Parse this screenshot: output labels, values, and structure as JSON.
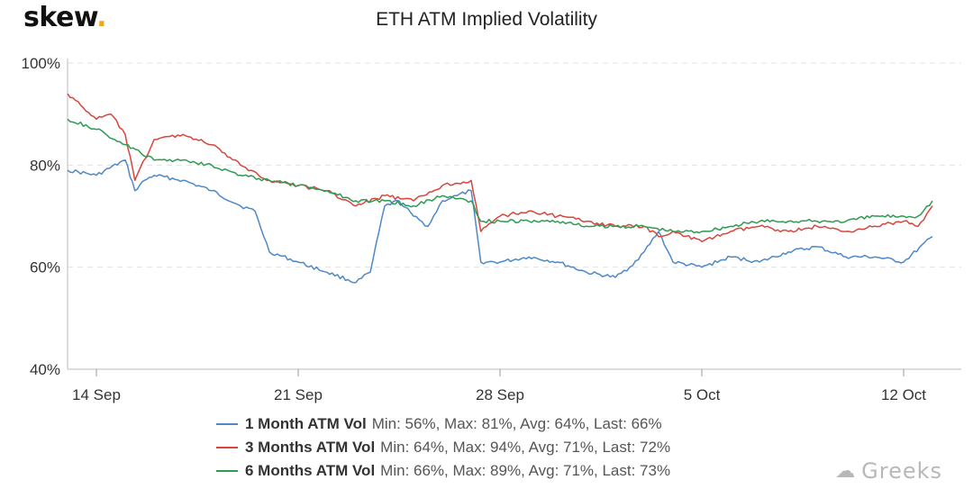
{
  "header": {
    "brand": "skew",
    "brand_dot": "."
  },
  "watermark": {
    "icon": "wechat-bubbles-icon",
    "text": "Greeks"
  },
  "chart_data": {
    "type": "line",
    "title": "ETH ATM Implied Volatility",
    "xlabel": "",
    "ylabel": "",
    "ylim": [
      40,
      100
    ],
    "y_ticks": [
      40,
      60,
      80,
      100
    ],
    "y_tick_labels": [
      "40%",
      "60%",
      "80%",
      "100%"
    ],
    "x_range": [
      "2020-09-13",
      "2020-10-14"
    ],
    "x_ticks": [
      "2020-09-14",
      "2020-09-21",
      "2020-09-28",
      "2020-10-05",
      "2020-10-12"
    ],
    "x_tick_labels": [
      "14 Sep",
      "21 Sep",
      "28 Sep",
      "5 Oct",
      "12 Oct"
    ],
    "grid": "horizontal dashed",
    "legend_position": "bottom",
    "series": [
      {
        "name": "1 Month ATM Vol",
        "stats": "Min: 56%, Max: 81%, Avg: 64%, Last: 66%",
        "color": "#4f88c8",
        "points": [
          [
            "2020-09-13",
            79
          ],
          [
            "2020-09-14",
            78
          ],
          [
            "2020-09-15",
            81
          ],
          [
            "2020-09-15T08:00",
            75
          ],
          [
            "2020-09-15T16:00",
            77
          ],
          [
            "2020-09-16",
            78
          ],
          [
            "2020-09-17",
            77
          ],
          [
            "2020-09-18",
            75
          ],
          [
            "2020-09-19",
            72
          ],
          [
            "2020-09-19T12:00",
            71
          ],
          [
            "2020-09-20",
            63
          ],
          [
            "2020-09-21",
            61
          ],
          [
            "2020-09-22",
            59
          ],
          [
            "2020-09-23",
            57
          ],
          [
            "2020-09-23T12:00",
            59
          ],
          [
            "2020-09-24",
            72
          ],
          [
            "2020-09-24T12:00",
            73
          ],
          [
            "2020-09-25",
            70
          ],
          [
            "2020-09-25T12:00",
            68
          ],
          [
            "2020-09-26",
            73
          ],
          [
            "2020-09-26T12:00",
            74
          ],
          [
            "2020-09-27",
            75
          ],
          [
            "2020-09-27T08:00",
            61
          ],
          [
            "2020-09-28",
            61
          ],
          [
            "2020-09-29",
            62
          ],
          [
            "2020-09-30",
            61
          ],
          [
            "2020-10-01",
            59
          ],
          [
            "2020-10-02",
            58
          ],
          [
            "2020-10-02T12:00",
            60
          ],
          [
            "2020-10-03",
            63
          ],
          [
            "2020-10-03T12:00",
            67
          ],
          [
            "2020-10-04",
            61
          ],
          [
            "2020-10-05",
            60
          ],
          [
            "2020-10-06",
            62
          ],
          [
            "2020-10-07",
            61
          ],
          [
            "2020-10-08",
            63
          ],
          [
            "2020-10-09",
            64
          ],
          [
            "2020-10-10",
            62
          ],
          [
            "2020-10-11",
            62
          ],
          [
            "2020-10-12",
            61
          ],
          [
            "2020-10-13",
            66
          ]
        ]
      },
      {
        "name": "3 Months ATM Vol",
        "stats": "Min: 64%, Max: 94%, Avg: 71%, Last: 72%",
        "color": "#d8453d",
        "points": [
          [
            "2020-09-13",
            94
          ],
          [
            "2020-09-14",
            89
          ],
          [
            "2020-09-14T12:00",
            90
          ],
          [
            "2020-09-15",
            86
          ],
          [
            "2020-09-15T08:00",
            77
          ],
          [
            "2020-09-16",
            85
          ],
          [
            "2020-09-17",
            86
          ],
          [
            "2020-09-18",
            84
          ],
          [
            "2020-09-19",
            80
          ],
          [
            "2020-09-20",
            77
          ],
          [
            "2020-09-21",
            76
          ],
          [
            "2020-09-22",
            75
          ],
          [
            "2020-09-23",
            72
          ],
          [
            "2020-09-24",
            74
          ],
          [
            "2020-09-25",
            73
          ],
          [
            "2020-09-26",
            76
          ],
          [
            "2020-09-27",
            77
          ],
          [
            "2020-09-27T08:00",
            67
          ],
          [
            "2020-09-28",
            70
          ],
          [
            "2020-09-29",
            71
          ],
          [
            "2020-09-30",
            70
          ],
          [
            "2020-10-01",
            69
          ],
          [
            "2020-10-02",
            68
          ],
          [
            "2020-10-03",
            68
          ],
          [
            "2020-10-03T12:00",
            66
          ],
          [
            "2020-10-04",
            67
          ],
          [
            "2020-10-05",
            65
          ],
          [
            "2020-10-06",
            67
          ],
          [
            "2020-10-07",
            68
          ],
          [
            "2020-10-08",
            67
          ],
          [
            "2020-10-09",
            68
          ],
          [
            "2020-10-10",
            67
          ],
          [
            "2020-10-11",
            68
          ],
          [
            "2020-10-12",
            69
          ],
          [
            "2020-10-12T12:00",
            68
          ],
          [
            "2020-10-13",
            72
          ]
        ]
      },
      {
        "name": "6 Months ATM Vol",
        "stats": "Min: 66%, Max: 89%, Avg: 71%, Last: 73%",
        "color": "#2e9a52",
        "points": [
          [
            "2020-09-13",
            89
          ],
          [
            "2020-09-14",
            87
          ],
          [
            "2020-09-15",
            84
          ],
          [
            "2020-09-16",
            81
          ],
          [
            "2020-09-17",
            81
          ],
          [
            "2020-09-18",
            80
          ],
          [
            "2020-09-19",
            78
          ],
          [
            "2020-09-20",
            77
          ],
          [
            "2020-09-21",
            76
          ],
          [
            "2020-09-22",
            75
          ],
          [
            "2020-09-23",
            73
          ],
          [
            "2020-09-24",
            73
          ],
          [
            "2020-09-25",
            72
          ],
          [
            "2020-09-26",
            74
          ],
          [
            "2020-09-27",
            73
          ],
          [
            "2020-09-27T08:00",
            69
          ],
          [
            "2020-09-28",
            69
          ],
          [
            "2020-09-29",
            69
          ],
          [
            "2020-09-30",
            69
          ],
          [
            "2020-10-01",
            68
          ],
          [
            "2020-10-02",
            68
          ],
          [
            "2020-10-03",
            68
          ],
          [
            "2020-10-04",
            67
          ],
          [
            "2020-10-05",
            67
          ],
          [
            "2020-10-06",
            68
          ],
          [
            "2020-10-07",
            69
          ],
          [
            "2020-10-08",
            69
          ],
          [
            "2020-10-09",
            69
          ],
          [
            "2020-10-10",
            69
          ],
          [
            "2020-10-11",
            70
          ],
          [
            "2020-10-12",
            70
          ],
          [
            "2020-10-12T12:00",
            70
          ],
          [
            "2020-10-13",
            73
          ]
        ]
      }
    ]
  }
}
